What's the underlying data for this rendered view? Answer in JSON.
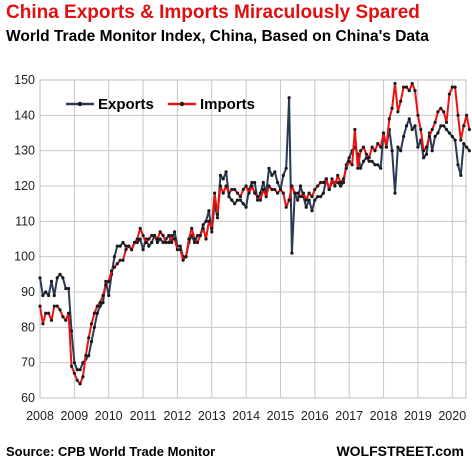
{
  "header": {
    "title": "China Exports & Imports Miraculously Spared",
    "subtitle": "World Trade Monitor Index, China, Based on China's Data"
  },
  "footer": {
    "source": "Source: CPB World Trade Monitor",
    "brand": "WOLFSTREET.com"
  },
  "chart_data": {
    "type": "line",
    "title": "China Exports & Imports Miraculously Spared",
    "subtitle": "World Trade Monitor Index, China, Based on China's Data",
    "xlabel": "",
    "ylabel": "",
    "xlim": [
      2008,
      2020.4
    ],
    "ylim": [
      60,
      150
    ],
    "x_ticks": [
      2008,
      2009,
      2010,
      2011,
      2012,
      2013,
      2014,
      2015,
      2016,
      2017,
      2018,
      2019,
      2020
    ],
    "y_ticks": [
      60,
      70,
      80,
      90,
      100,
      110,
      120,
      130,
      140,
      150
    ],
    "grid": true,
    "legend_position": "top-left",
    "x_start": 2008.0,
    "x_step": 0.0833333,
    "series": [
      {
        "name": "Exports",
        "color": "#2a3a55",
        "values": [
          94,
          89,
          90,
          89,
          93,
          89,
          94,
          95,
          94,
          91,
          91,
          79,
          70,
          68,
          68,
          70,
          71,
          72,
          76,
          80,
          84,
          86,
          87,
          93,
          89,
          95,
          100,
          103,
          103,
          104,
          103,
          103,
          102,
          104,
          104,
          105,
          102,
          105,
          103,
          104,
          106,
          104,
          105,
          104,
          105,
          106,
          104,
          107,
          103,
          103,
          100,
          100,
          104,
          106,
          104,
          106,
          106,
          109,
          110,
          113,
          107,
          115,
          111,
          123,
          122,
          124,
          117,
          116,
          115,
          116,
          116,
          115,
          114,
          119,
          121,
          121,
          116,
          118,
          121,
          118,
          125,
          123,
          124,
          121,
          119,
          123,
          125,
          145,
          101,
          118,
          116,
          120,
          117,
          114,
          116,
          113,
          116,
          117,
          117,
          118,
          122,
          119,
          121,
          121,
          121,
          120,
          121,
          126,
          128,
          130,
          131,
          129,
          125,
          127,
          128,
          127,
          127,
          126,
          126,
          125,
          135,
          131,
          136,
          130,
          118,
          131,
          130,
          134,
          137,
          139,
          136,
          137,
          131,
          133,
          128,
          129,
          135,
          130,
          134,
          135,
          137,
          137,
          136,
          135,
          134,
          133,
          126,
          123,
          132,
          131,
          130
        ]
      },
      {
        "name": "Imports",
        "color": "#ee1111",
        "values": [
          86,
          81,
          84,
          84,
          82,
          86,
          86,
          85,
          83,
          82,
          84,
          69,
          67,
          65,
          64,
          66,
          72,
          77,
          81,
          84,
          86,
          87,
          89,
          92,
          93,
          96,
          97,
          98,
          99,
          99,
          102,
          103,
          102,
          104,
          105,
          108,
          106,
          104,
          105,
          106,
          106,
          105,
          107,
          106,
          104,
          104,
          106,
          105,
          102,
          102,
          99,
          100,
          105,
          108,
          105,
          104,
          106,
          108,
          105,
          110,
          108,
          118,
          112,
          120,
          118,
          120,
          118,
          119,
          119,
          118,
          117,
          119,
          120,
          118,
          120,
          118,
          117,
          116,
          119,
          117,
          120,
          119,
          119,
          118,
          119,
          118,
          114,
          116,
          120,
          118,
          118,
          117,
          118,
          116,
          118,
          117,
          119,
          120,
          121,
          121,
          122,
          119,
          122,
          120,
          123,
          121,
          122,
          125,
          127,
          126,
          136,
          125,
          130,
          131,
          129,
          128,
          131,
          130,
          132,
          131,
          135,
          131,
          139,
          142,
          149,
          141,
          144,
          148,
          148,
          147,
          149,
          147,
          140,
          136,
          130,
          131,
          134,
          136,
          138,
          141,
          142,
          141,
          138,
          146,
          148,
          148,
          140,
          133,
          137,
          140,
          136
        ]
      }
    ]
  }
}
